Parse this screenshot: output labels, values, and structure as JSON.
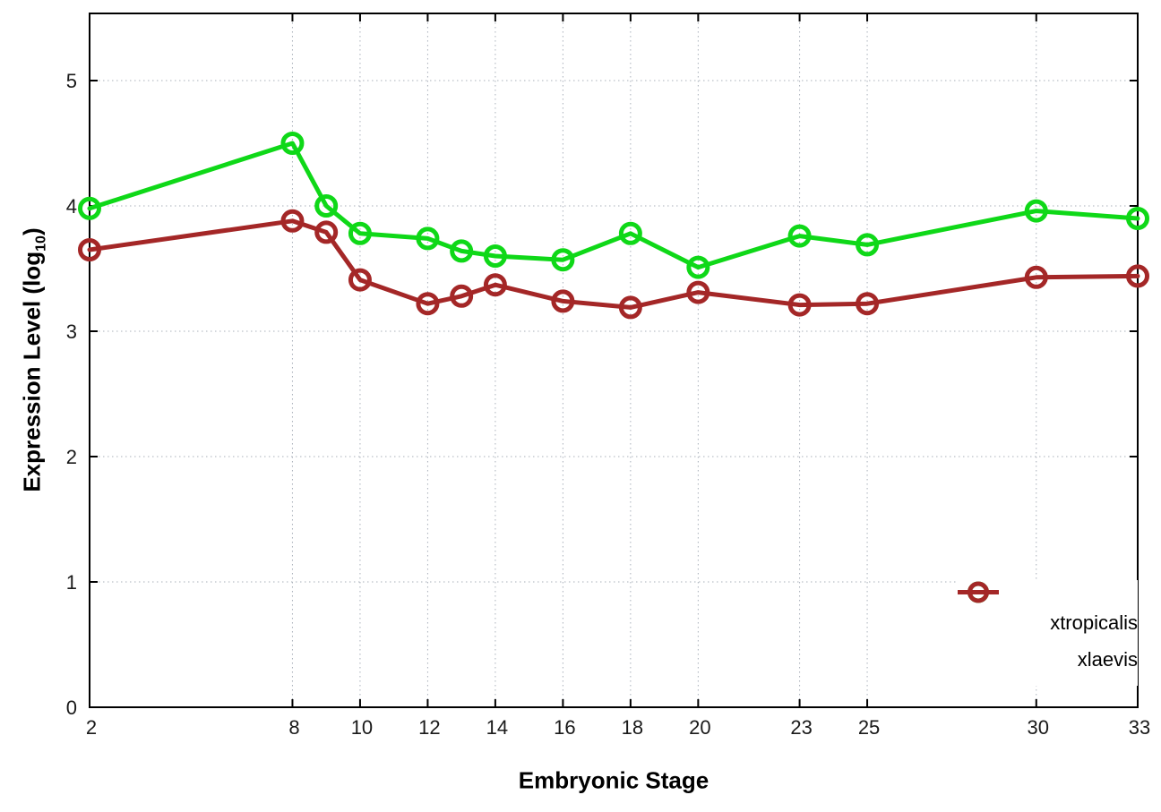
{
  "figure": {
    "background": "#ffffff"
  },
  "chart_data": {
    "type": "line",
    "title": "",
    "xlabel": "Embryonic Stage",
    "ylabel": {
      "prefix": "Expression Level (log",
      "sub": "10",
      "suffix": ")"
    },
    "x": [
      2,
      8,
      9,
      10,
      12,
      13,
      14,
      16,
      18,
      20,
      23,
      25,
      30,
      33
    ],
    "x_tick_labels": [
      2,
      8,
      10,
      12,
      14,
      16,
      18,
      20,
      23,
      25,
      30,
      33
    ],
    "y_ticks": [
      0,
      1,
      2,
      3,
      4,
      5
    ],
    "xlim": [
      2,
      33
    ],
    "ylim": [
      0,
      5.55
    ],
    "grid": true,
    "legend_position": "bottom-right-inside",
    "series": [
      {
        "name": "xtropicalis",
        "color": "#0fd818",
        "marker": "open-circle",
        "values": [
          3.98,
          4.5,
          4.0,
          3.78,
          3.74,
          3.64,
          3.6,
          3.57,
          3.78,
          3.51,
          3.76,
          3.69,
          3.96,
          3.9
        ]
      },
      {
        "name": "xlaevis",
        "color": "#a42727",
        "marker": "open-circle",
        "values": [
          3.65,
          3.88,
          3.79,
          3.41,
          3.22,
          3.28,
          3.37,
          3.24,
          3.19,
          3.31,
          3.21,
          3.22,
          3.43,
          3.44
        ]
      }
    ],
    "axis_color": "#000000",
    "grid_color": "#a9b0ba",
    "tick_label_color": "#1a1a1a"
  }
}
